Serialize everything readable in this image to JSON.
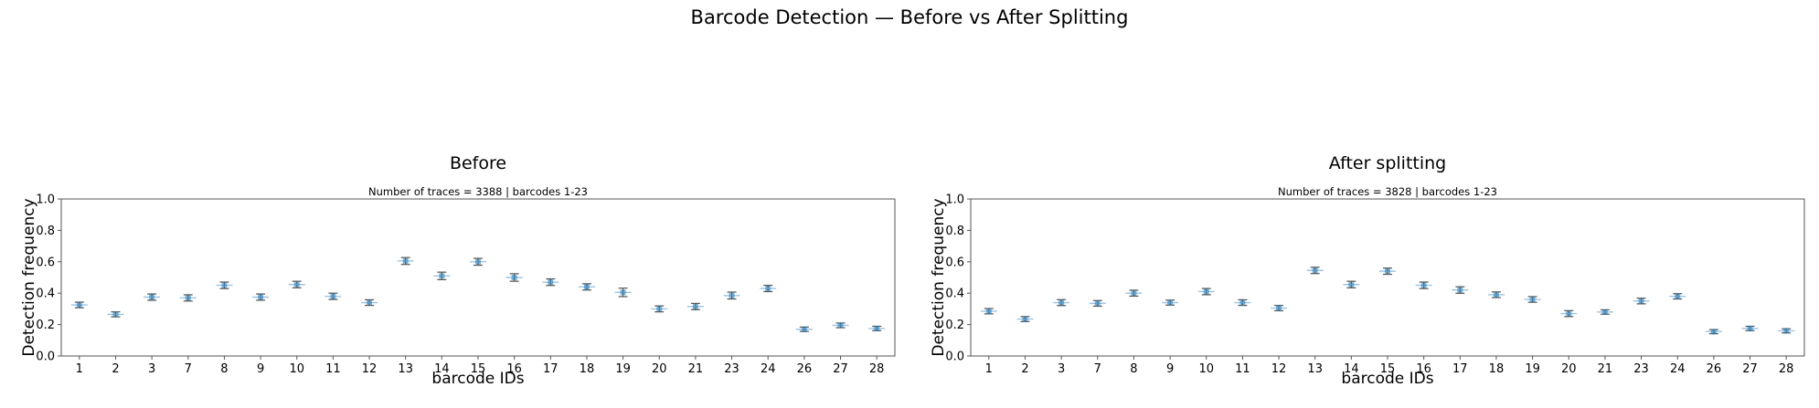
{
  "figure": {
    "title": "Barcode Detection — Before vs After Splitting"
  },
  "chart_data": [
    {
      "type": "scatter",
      "title": "Before",
      "subtitle": "Number of traces = 3388 | barcodes 1-23",
      "xlabel": "barcode IDs",
      "ylabel": "Detection frequency",
      "ylim": [
        0,
        1.0
      ],
      "yticks": [
        "0.0",
        "0.2",
        "0.4",
        "0.6",
        "0.8",
        "1.0"
      ],
      "grid": false,
      "categories": [
        "1",
        "2",
        "3",
        "7",
        "8",
        "9",
        "10",
        "11",
        "12",
        "13",
        "14",
        "15",
        "16",
        "17",
        "18",
        "19",
        "20",
        "21",
        "23",
        "24",
        "26",
        "27",
        "28"
      ],
      "values": [
        0.325,
        0.265,
        0.375,
        0.37,
        0.45,
        0.375,
        0.455,
        0.38,
        0.34,
        0.605,
        0.51,
        0.6,
        0.5,
        0.47,
        0.44,
        0.405,
        0.3,
        0.315,
        0.385,
        0.43,
        0.17,
        0.195,
        0.175
      ],
      "error": [
        0.018,
        0.016,
        0.02,
        0.02,
        0.021,
        0.02,
        0.021,
        0.02,
        0.018,
        0.022,
        0.024,
        0.022,
        0.024,
        0.021,
        0.02,
        0.027,
        0.019,
        0.02,
        0.022,
        0.02,
        0.014,
        0.015,
        0.014
      ],
      "color": "#1f77b4"
    },
    {
      "type": "scatter",
      "title": "After splitting",
      "subtitle": "Number of traces = 3828 | barcodes 1-23",
      "xlabel": "barcode IDs",
      "ylabel": "Detection frequency",
      "ylim": [
        0,
        1.0
      ],
      "yticks": [
        "0.0",
        "0.2",
        "0.4",
        "0.6",
        "0.8",
        "1.0"
      ],
      "grid": false,
      "categories": [
        "1",
        "2",
        "3",
        "7",
        "8",
        "9",
        "10",
        "11",
        "12",
        "13",
        "14",
        "15",
        "16",
        "17",
        "18",
        "19",
        "20",
        "21",
        "23",
        "24",
        "26",
        "27",
        "28"
      ],
      "values": [
        0.285,
        0.235,
        0.34,
        0.335,
        0.4,
        0.34,
        0.41,
        0.34,
        0.305,
        0.545,
        0.455,
        0.54,
        0.45,
        0.42,
        0.39,
        0.36,
        0.27,
        0.28,
        0.35,
        0.38,
        0.155,
        0.175,
        0.16
      ],
      "error": [
        0.017,
        0.016,
        0.019,
        0.018,
        0.019,
        0.016,
        0.02,
        0.018,
        0.017,
        0.02,
        0.021,
        0.02,
        0.021,
        0.021,
        0.018,
        0.018,
        0.019,
        0.014,
        0.018,
        0.017,
        0.013,
        0.014,
        0.013
      ],
      "color": "#1f77b4"
    }
  ]
}
